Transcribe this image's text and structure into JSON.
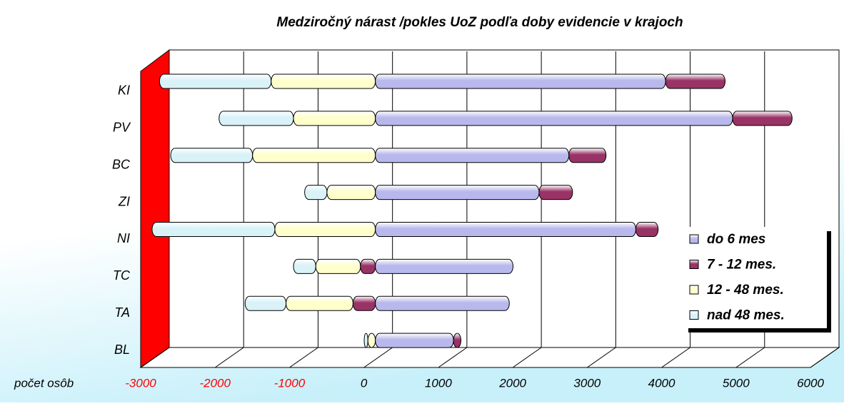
{
  "chart_data": {
    "type": "bar",
    "orientation": "horizontal",
    "stacked": true,
    "title": "Medziročný nárast /pokles UoZ podľa doby evidencie v krajoch",
    "x_label": "počet osôb",
    "categories": [
      "KI",
      "PV",
      "BC",
      "ZI",
      "NI",
      "TC",
      "TA",
      "BL"
    ],
    "series": [
      {
        "name": "do 6 mes",
        "color": "#b8b8ec",
        "values": [
          3900,
          4800,
          2600,
          2200,
          3500,
          1850,
          1800,
          1050
        ]
      },
      {
        "name": "7 - 12 mes.",
        "color": "#993366",
        "values": [
          800,
          800,
          500,
          450,
          300,
          -200,
          -300,
          100
        ]
      },
      {
        "name": "12 - 48 mes.",
        "color": "#ffffcc",
        "values": [
          -1400,
          -1100,
          -1650,
          -650,
          -1350,
          -600,
          -900,
          -100
        ]
      },
      {
        "name": "nad 48 mes.",
        "color": "#d8f2f8",
        "values": [
          -1500,
          -1000,
          -1100,
          -300,
          -1650,
          -300,
          -550,
          -50
        ]
      }
    ],
    "xlim": [
      -3000,
      6000
    ],
    "xticks": [
      -3000,
      -2000,
      -1000,
      0,
      1000,
      2000,
      3000,
      4000,
      5000,
      6000
    ],
    "grid": true,
    "legend": "right"
  }
}
